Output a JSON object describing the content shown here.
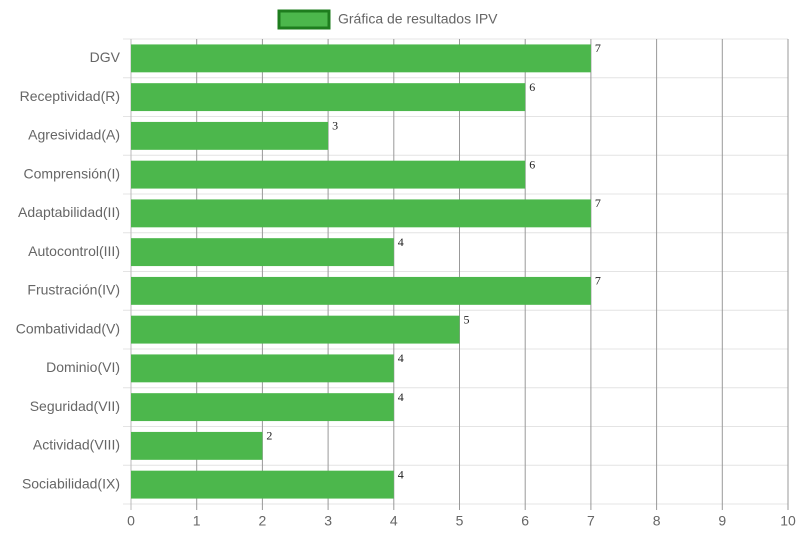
{
  "chart_data": {
    "type": "bar",
    "orientation": "horizontal",
    "categories": [
      "DGV",
      "Receptividad(R)",
      "Agresividad(A)",
      "Comprensión(I)",
      "Adaptabilidad(II)",
      "Autocontrol(III)",
      "Frustración(IV)",
      "Combatividad(V)",
      "Dominio(VI)",
      "Seguridad(VII)",
      "Actividad(VIII)",
      "Sociabilidad(IX)"
    ],
    "series": [
      {
        "name": "Gráfica de resultados IPV",
        "color": "#4cb74c",
        "border_color": "#1e7d1e",
        "values": [
          7,
          6,
          3,
          6,
          7,
          4,
          7,
          5,
          4,
          4,
          2,
          4
        ]
      }
    ],
    "xlim": [
      0,
      10
    ],
    "xticks": [
      0,
      1,
      2,
      3,
      4,
      5,
      6,
      7,
      8,
      9,
      10
    ],
    "grid": true,
    "legend": "top"
  }
}
